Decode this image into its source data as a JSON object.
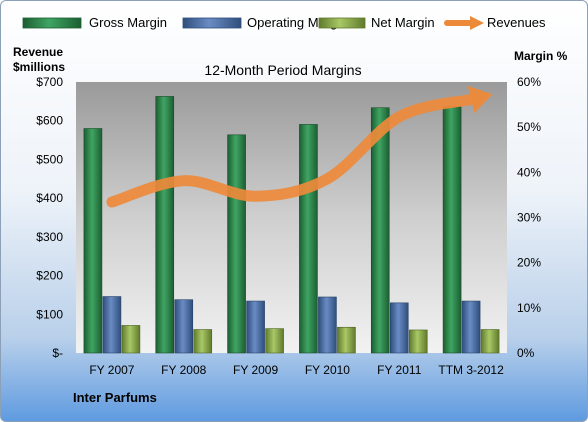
{
  "chart_data": {
    "type": "bar",
    "title": "12-Month Period Margins",
    "categories": [
      "FY 2007",
      "FY 2008",
      "FY 2009",
      "FY 2010",
      "FY 2011",
      "TTM 3-2012"
    ],
    "series": [
      {
        "name": "Gross Margin",
        "axis": "right",
        "values": [
          49.7,
          56.8,
          48.3,
          50.6,
          54.3,
          54.5
        ],
        "color": "#2d8a4e"
      },
      {
        "name": "Operating Margin",
        "axis": "right",
        "values": [
          12.5,
          11.8,
          11.5,
          12.4,
          11.1,
          11.5
        ],
        "color": "#4a6fa5"
      },
      {
        "name": "Net Margin",
        "axis": "right",
        "values": [
          6.1,
          5.2,
          5.4,
          5.7,
          5.1,
          5.2
        ],
        "color": "#8fb04b"
      }
    ],
    "line_series": {
      "name": "Revenues",
      "axis": "left",
      "values": [
        390,
        445,
        405,
        450,
        610,
        655
      ],
      "color": "#ed8a3a"
    },
    "left_axis": {
      "label_line1": "Revenue",
      "label_line2": "$millions",
      "ticks": [
        "$-",
        "$100",
        "$200",
        "$300",
        "$400",
        "$500",
        "$600",
        "$700"
      ],
      "range": [
        0,
        700
      ]
    },
    "right_axis": {
      "label": "Margin %",
      "ticks": [
        "0%",
        "10%",
        "20%",
        "30%",
        "40%",
        "50%",
        "60%"
      ],
      "range": [
        0,
        60
      ]
    },
    "legend_position": "top",
    "grid": false
  },
  "footer_label": "Inter Parfums"
}
